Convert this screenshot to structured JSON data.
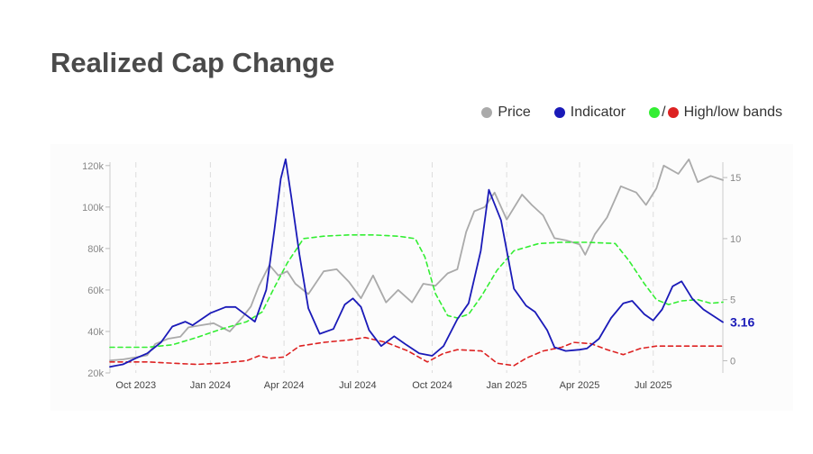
{
  "header": {
    "title": "Realized Cap Change"
  },
  "legend": {
    "price_label": "Price",
    "indicator_label": "Indicator",
    "bands_label": "High/low bands",
    "slash": "/"
  },
  "colors": {
    "price": "#aaaaaa",
    "indicator": "#1a1ab8",
    "high_band": "#33ee33",
    "low_band": "#dd2222",
    "axis_text": "#888888",
    "last_value": "#1a1ab8"
  },
  "chart_data": {
    "type": "line",
    "title": "Realized Cap Change",
    "xlabel": "",
    "ylabel": "",
    "x_range": [
      "2023-08-30",
      "2025-09-25"
    ],
    "x_ticks": [
      "2023-10-01",
      "2024-01-01",
      "2024-04-01",
      "2024-07-01",
      "2024-10-01",
      "2025-01-01",
      "2025-04-01",
      "2025-07-01"
    ],
    "x_tick_labels": [
      "Oct 2023",
      "Jan 2024",
      "Apr 2024",
      "Jul 2024",
      "Oct 2024",
      "Jan 2025",
      "Apr 2025",
      "Jul 2025"
    ],
    "y_left": {
      "range": [
        20000,
        126000
      ],
      "ticks": [
        20000,
        40000,
        60000,
        80000,
        100000,
        120000
      ],
      "tick_labels": [
        "20k",
        "40k",
        "60k",
        "80k",
        "100k",
        "120k"
      ]
    },
    "y_right": {
      "range": [
        -1,
        17
      ],
      "ticks": [
        0,
        5,
        10,
        15
      ],
      "tick_labels": [
        "0",
        "5",
        "10",
        "15"
      ]
    },
    "grid": "vertical dashed",
    "legend": "top-right",
    "last_value_label": "3.16",
    "series": [
      {
        "name": "Price",
        "axis": "left",
        "points": [
          [
            "2023-08-30",
            26000
          ],
          [
            "2023-09-15",
            26500
          ],
          [
            "2023-10-01",
            27500
          ],
          [
            "2023-10-15",
            28500
          ],
          [
            "2023-10-25",
            34000
          ],
          [
            "2023-11-10",
            36500
          ],
          [
            "2023-11-25",
            37500
          ],
          [
            "2023-12-05",
            42000
          ],
          [
            "2023-12-20",
            43000
          ],
          [
            "2024-01-05",
            44000
          ],
          [
            "2024-01-15",
            42000
          ],
          [
            "2024-01-25",
            40000
          ],
          [
            "2024-02-10",
            47000
          ],
          [
            "2024-02-20",
            52000
          ],
          [
            "2024-03-01",
            62000
          ],
          [
            "2024-03-10",
            69000
          ],
          [
            "2024-03-14",
            72000
          ],
          [
            "2024-03-25",
            67000
          ],
          [
            "2024-04-05",
            69000
          ],
          [
            "2024-04-15",
            63000
          ],
          [
            "2024-05-01",
            58000
          ],
          [
            "2024-05-20",
            69000
          ],
          [
            "2024-06-05",
            70000
          ],
          [
            "2024-06-20",
            64000
          ],
          [
            "2024-07-05",
            56000
          ],
          [
            "2024-07-20",
            67000
          ],
          [
            "2024-08-05",
            54000
          ],
          [
            "2024-08-20",
            60000
          ],
          [
            "2024-09-06",
            54000
          ],
          [
            "2024-09-20",
            63000
          ],
          [
            "2024-10-05",
            62000
          ],
          [
            "2024-10-20",
            68000
          ],
          [
            "2024-11-01",
            70000
          ],
          [
            "2024-11-12",
            88000
          ],
          [
            "2024-11-22",
            98000
          ],
          [
            "2024-12-05",
            100000
          ],
          [
            "2024-12-17",
            107000
          ],
          [
            "2025-01-01",
            94000
          ],
          [
            "2025-01-20",
            106000
          ],
          [
            "2025-02-01",
            101000
          ],
          [
            "2025-02-15",
            96000
          ],
          [
            "2025-03-01",
            85000
          ],
          [
            "2025-03-15",
            84000
          ],
          [
            "2025-04-01",
            82000
          ],
          [
            "2025-04-08",
            77000
          ],
          [
            "2025-04-20",
            87000
          ],
          [
            "2025-05-05",
            95000
          ],
          [
            "2025-05-22",
            110000
          ],
          [
            "2025-06-10",
            107000
          ],
          [
            "2025-06-22",
            101000
          ],
          [
            "2025-07-05",
            109000
          ],
          [
            "2025-07-14",
            120000
          ],
          [
            "2025-08-01",
            116000
          ],
          [
            "2025-08-14",
            123000
          ],
          [
            "2025-08-25",
            112000
          ],
          [
            "2025-09-10",
            115000
          ],
          [
            "2025-09-25",
            113000
          ]
        ]
      },
      {
        "name": "Indicator",
        "axis": "right",
        "points": [
          [
            "2023-08-30",
            -0.5
          ],
          [
            "2023-09-15",
            -0.3
          ],
          [
            "2023-10-01",
            0.2
          ],
          [
            "2023-10-15",
            0.6
          ],
          [
            "2023-11-01",
            1.5
          ],
          [
            "2023-11-15",
            2.8
          ],
          [
            "2023-12-01",
            3.2
          ],
          [
            "2023-12-10",
            2.9
          ],
          [
            "2024-01-01",
            3.9
          ],
          [
            "2024-01-20",
            4.4
          ],
          [
            "2024-02-01",
            4.4
          ],
          [
            "2024-02-15",
            3.7
          ],
          [
            "2024-02-25",
            3.2
          ],
          [
            "2024-03-10",
            5.8
          ],
          [
            "2024-03-20",
            10.7
          ],
          [
            "2024-03-28",
            14.9
          ],
          [
            "2024-04-03",
            16.5
          ],
          [
            "2024-04-10",
            13.4
          ],
          [
            "2024-04-20",
            8.7
          ],
          [
            "2024-05-01",
            4.3
          ],
          [
            "2024-05-15",
            2.2
          ],
          [
            "2024-06-01",
            2.6
          ],
          [
            "2024-06-15",
            4.6
          ],
          [
            "2024-06-25",
            5.1
          ],
          [
            "2024-07-05",
            4.4
          ],
          [
            "2024-07-15",
            2.5
          ],
          [
            "2024-07-30",
            1.2
          ],
          [
            "2024-08-15",
            2.0
          ],
          [
            "2024-08-30",
            1.3
          ],
          [
            "2024-09-15",
            0.6
          ],
          [
            "2024-10-01",
            0.4
          ],
          [
            "2024-10-15",
            1.2
          ],
          [
            "2024-11-01",
            3.4
          ],
          [
            "2024-11-15",
            4.7
          ],
          [
            "2024-11-30",
            9.0
          ],
          [
            "2024-12-10",
            14.0
          ],
          [
            "2024-12-25",
            11.5
          ],
          [
            "2025-01-10",
            5.9
          ],
          [
            "2025-01-25",
            4.5
          ],
          [
            "2025-02-05",
            4.0
          ],
          [
            "2025-02-20",
            2.5
          ],
          [
            "2025-03-01",
            1.1
          ],
          [
            "2025-03-15",
            0.8
          ],
          [
            "2025-04-01",
            0.9
          ],
          [
            "2025-04-10",
            1.0
          ],
          [
            "2025-04-25",
            1.8
          ],
          [
            "2025-05-10",
            3.5
          ],
          [
            "2025-05-25",
            4.7
          ],
          [
            "2025-06-05",
            4.9
          ],
          [
            "2025-06-20",
            3.8
          ],
          [
            "2025-07-01",
            3.3
          ],
          [
            "2025-07-12",
            4.2
          ],
          [
            "2025-07-25",
            6.1
          ],
          [
            "2025-08-05",
            6.5
          ],
          [
            "2025-08-18",
            5.1
          ],
          [
            "2025-09-01",
            4.2
          ],
          [
            "2025-09-25",
            3.16
          ]
        ]
      },
      {
        "name": "High band",
        "axis": "right",
        "points": [
          [
            "2023-08-30",
            1.1
          ],
          [
            "2023-10-15",
            1.1
          ],
          [
            "2023-11-15",
            1.3
          ],
          [
            "2023-12-15",
            1.9
          ],
          [
            "2024-01-15",
            2.6
          ],
          [
            "2024-02-15",
            3.2
          ],
          [
            "2024-03-05",
            4.0
          ],
          [
            "2024-03-20",
            6.0
          ],
          [
            "2024-04-05",
            8.0
          ],
          [
            "2024-04-25",
            10.0
          ],
          [
            "2024-05-20",
            10.2
          ],
          [
            "2024-06-20",
            10.3
          ],
          [
            "2024-07-20",
            10.3
          ],
          [
            "2024-08-20",
            10.2
          ],
          [
            "2024-09-10",
            10.0
          ],
          [
            "2024-09-22",
            8.5
          ],
          [
            "2024-10-05",
            5.5
          ],
          [
            "2024-10-20",
            3.7
          ],
          [
            "2024-11-01",
            3.5
          ],
          [
            "2024-11-15",
            3.8
          ],
          [
            "2024-12-01",
            5.3
          ],
          [
            "2024-12-20",
            7.4
          ],
          [
            "2025-01-10",
            9.0
          ],
          [
            "2025-02-10",
            9.6
          ],
          [
            "2025-03-10",
            9.7
          ],
          [
            "2025-04-10",
            9.7
          ],
          [
            "2025-05-15",
            9.6
          ],
          [
            "2025-06-01",
            8.2
          ],
          [
            "2025-06-20",
            6.3
          ],
          [
            "2025-07-05",
            5.0
          ],
          [
            "2025-07-20",
            4.6
          ],
          [
            "2025-08-05",
            4.9
          ],
          [
            "2025-08-25",
            5.0
          ],
          [
            "2025-09-10",
            4.7
          ],
          [
            "2025-09-25",
            4.8
          ]
        ]
      },
      {
        "name": "Low band",
        "axis": "right",
        "points": [
          [
            "2023-08-30",
            -0.1
          ],
          [
            "2023-10-15",
            -0.1
          ],
          [
            "2023-11-15",
            -0.2
          ],
          [
            "2023-12-15",
            -0.3
          ],
          [
            "2024-01-15",
            -0.2
          ],
          [
            "2024-02-15",
            0.0
          ],
          [
            "2024-03-01",
            0.4
          ],
          [
            "2024-03-15",
            0.2
          ],
          [
            "2024-04-01",
            0.3
          ],
          [
            "2024-04-20",
            1.2
          ],
          [
            "2024-05-20",
            1.5
          ],
          [
            "2024-06-20",
            1.7
          ],
          [
            "2024-07-10",
            1.9
          ],
          [
            "2024-08-05",
            1.5
          ],
          [
            "2024-09-01",
            0.8
          ],
          [
            "2024-09-25",
            -0.1
          ],
          [
            "2024-10-15",
            0.6
          ],
          [
            "2024-11-01",
            0.9
          ],
          [
            "2024-12-01",
            0.8
          ],
          [
            "2024-12-20",
            -0.2
          ],
          [
            "2025-01-10",
            -0.4
          ],
          [
            "2025-01-25",
            0.2
          ],
          [
            "2025-02-15",
            0.8
          ],
          [
            "2025-03-10",
            1.1
          ],
          [
            "2025-03-25",
            1.5
          ],
          [
            "2025-04-15",
            1.4
          ],
          [
            "2025-05-05",
            0.9
          ],
          [
            "2025-05-25",
            0.5
          ],
          [
            "2025-06-15",
            1.0
          ],
          [
            "2025-07-05",
            1.2
          ],
          [
            "2025-08-01",
            1.2
          ],
          [
            "2025-09-25",
            1.2
          ]
        ]
      }
    ]
  }
}
